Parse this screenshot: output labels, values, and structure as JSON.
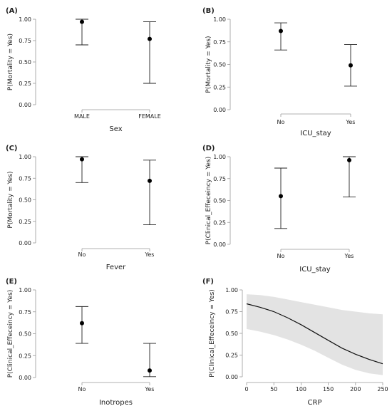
{
  "chart_data": [
    {
      "panel": "(A)",
      "type": "scatter",
      "categories": [
        "MALE",
        "FEMALE"
      ],
      "values": [
        0.97,
        0.77
      ],
      "lower": [
        0.7,
        0.25
      ],
      "upper": [
        1.0,
        0.97
      ],
      "xlabel": "Sex",
      "ylabel": "P(Mortality = Yes)",
      "ylim": [
        0,
        1
      ],
      "yticks": [
        "0.00",
        "0.25",
        "0.50",
        "0.75",
        "1.00"
      ]
    },
    {
      "panel": "(B)",
      "type": "scatter",
      "categories": [
        "No",
        "Yes"
      ],
      "values": [
        0.87,
        0.49
      ],
      "lower": [
        0.66,
        0.26
      ],
      "upper": [
        0.96,
        0.72
      ],
      "xlabel": "ICU_stay",
      "ylabel": "P(Mortality = Yes)",
      "ylim": [
        0,
        1
      ],
      "yticks": [
        "0.00",
        "0.25",
        "0.50",
        "0.75",
        "1.00"
      ]
    },
    {
      "panel": "(C)",
      "type": "scatter",
      "categories": [
        "No",
        "Yes"
      ],
      "values": [
        0.97,
        0.72
      ],
      "lower": [
        0.7,
        0.21
      ],
      "upper": [
        1.0,
        0.96
      ],
      "xlabel": "Fever",
      "ylabel": "P(Mortality = Yes)",
      "ylim": [
        0,
        1
      ],
      "yticks": [
        "0.00",
        "0.25",
        "0.50",
        "0.75",
        "1.00"
      ]
    },
    {
      "panel": "(D)",
      "type": "scatter",
      "categories": [
        "No",
        "Yes"
      ],
      "values": [
        0.55,
        0.96
      ],
      "lower": [
        0.18,
        0.54
      ],
      "upper": [
        0.87,
        1.0
      ],
      "xlabel": "ICU_stay",
      "ylabel": "P(Clinical_Effeceincy = Yes)",
      "ylim": [
        0,
        1
      ],
      "yticks": [
        "0.00",
        "0.25",
        "0.50",
        "0.75",
        "1.00"
      ]
    },
    {
      "panel": "(E)",
      "type": "scatter",
      "categories": [
        "No",
        "Yes"
      ],
      "values": [
        0.62,
        0.08
      ],
      "lower": [
        0.39,
        0.01
      ],
      "upper": [
        0.81,
        0.39
      ],
      "xlabel": "Inotropes",
      "ylabel": "P(Clinical_Effeceincy = Yes)",
      "ylim": [
        0,
        1
      ],
      "yticks": [
        "0.00",
        "0.25",
        "0.50",
        "0.75",
        "1.00"
      ]
    },
    {
      "panel": "(F)",
      "type": "line",
      "x": [
        0,
        25,
        50,
        75,
        100,
        125,
        150,
        175,
        200,
        225,
        250
      ],
      "values": [
        0.84,
        0.8,
        0.75,
        0.68,
        0.6,
        0.51,
        0.42,
        0.33,
        0.26,
        0.2,
        0.15
      ],
      "lower": [
        0.55,
        0.52,
        0.48,
        0.43,
        0.37,
        0.3,
        0.22,
        0.14,
        0.08,
        0.04,
        0.02
      ],
      "upper": [
        0.95,
        0.94,
        0.92,
        0.89,
        0.86,
        0.83,
        0.8,
        0.77,
        0.75,
        0.73,
        0.72
      ],
      "xlabel": "CRP",
      "ylabel": "P(Clinical_Effeceincy = Yes)",
      "xlim": [
        0,
        250
      ],
      "xticks": [
        "0",
        "50",
        "100",
        "150",
        "200",
        "250"
      ],
      "ylim": [
        0,
        1
      ],
      "yticks": [
        "0.00",
        "0.25",
        "0.50",
        "0.75",
        "1.00"
      ],
      "band_color": "#e3e3e3"
    }
  ]
}
